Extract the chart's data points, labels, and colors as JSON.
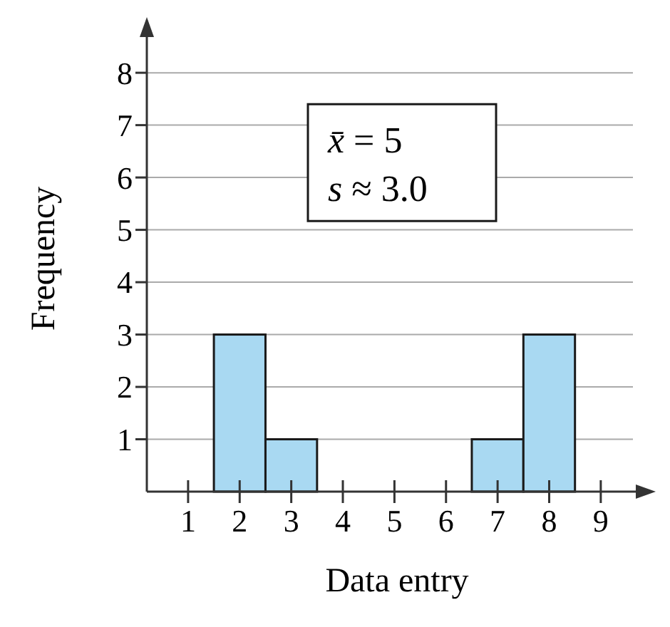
{
  "chart_data": {
    "type": "histogram",
    "xlabel": "Data entry",
    "ylabel": "Frequency",
    "bins": [
      1.5,
      2.5,
      3.5,
      4.5,
      5.5,
      6.5,
      7.5,
      8.5
    ],
    "values": [
      3,
      1,
      0,
      0,
      0,
      1,
      3
    ],
    "color": "#a9d9f2",
    "xlim": [
      0.2,
      9.9
    ],
    "xticks": [
      1,
      2,
      3,
      4,
      5,
      6,
      7,
      8,
      9
    ],
    "ylim": [
      0,
      8.9
    ],
    "yticks": [
      1,
      2,
      3,
      4,
      5,
      6,
      7,
      8
    ],
    "grid": "y",
    "annotations": [
      "x̄ = 5",
      "s ≈ 3.0"
    ]
  }
}
